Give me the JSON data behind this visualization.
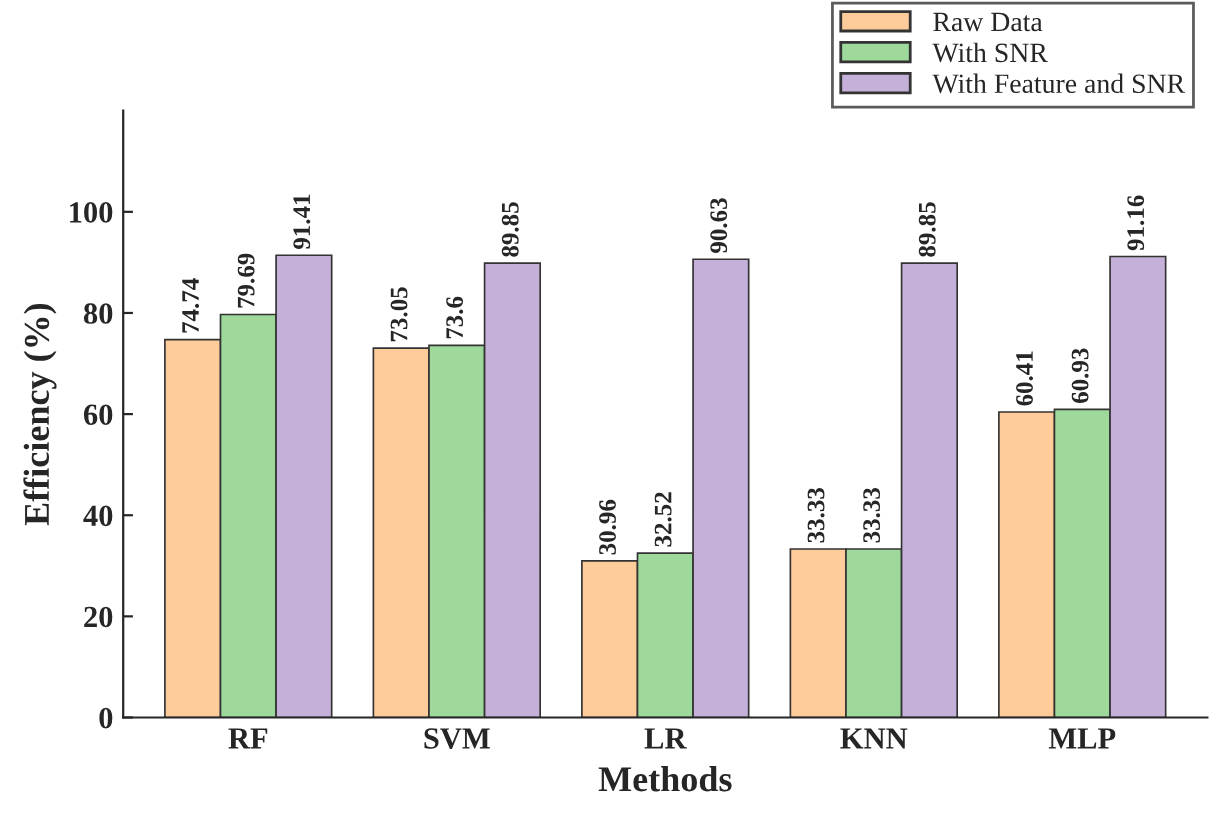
{
  "chart_data": {
    "type": "bar",
    "xlabel": "Methods",
    "ylabel": "Efficiency (%)",
    "categories": [
      "RF",
      "SVM",
      "LR",
      "KNN",
      "MLP"
    ],
    "series": [
      {
        "name": "Raw Data",
        "color": "#fdcc9a",
        "values": [
          74.74,
          73.05,
          30.96,
          33.33,
          60.41
        ]
      },
      {
        "name": "With SNR",
        "color": "#9ed99b",
        "values": [
          79.69,
          73.6,
          32.52,
          33.33,
          60.93
        ]
      },
      {
        "name": "With Feature and SNR",
        "color": "#c5b0d9",
        "values": [
          91.41,
          89.85,
          90.63,
          89.85,
          91.16
        ]
      }
    ],
    "ylim": [
      0,
      120
    ],
    "yticks": [
      0,
      20,
      40,
      60,
      80,
      100
    ],
    "data_labels": true,
    "legend": "top right",
    "grid": false
  }
}
